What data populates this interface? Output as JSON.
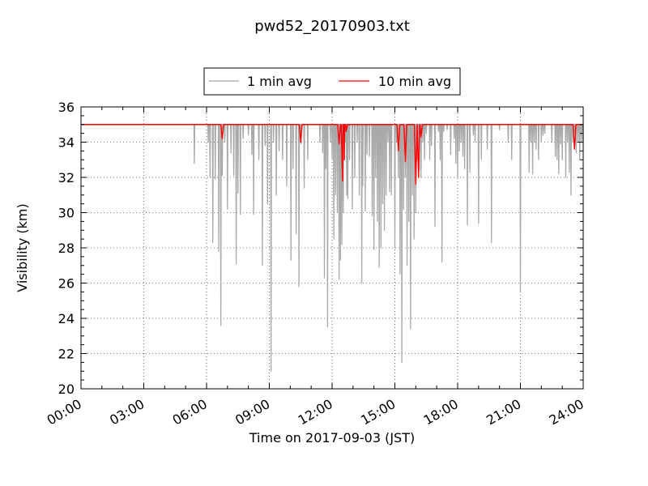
{
  "chart_data": {
    "type": "line",
    "title": "pwd52_20170903.txt",
    "xlabel": "Time on 2017-09-03 (JST)",
    "ylabel": "Visibility (km)",
    "xlim": [
      "00:00",
      "24:00"
    ],
    "ylim": [
      20,
      36
    ],
    "x_tick_labels": [
      "00:00",
      "03:00",
      "06:00",
      "09:00",
      "12:00",
      "15:00",
      "18:00",
      "21:00",
      "24:00"
    ],
    "y_ticks": [
      20,
      22,
      24,
      26,
      28,
      30,
      32,
      34,
      36
    ],
    "grid": true,
    "legend_position": "above plot, centered",
    "series": [
      {
        "name": "1 min avg",
        "color": "#a9a9a9",
        "baseline": 35.0,
        "dips": [
          [
            "05:25",
            32.8
          ],
          [
            "06:05",
            34.0
          ],
          [
            "06:10",
            32.0
          ],
          [
            "06:18",
            28.3
          ],
          [
            "06:25",
            31.9
          ],
          [
            "06:35",
            27.8
          ],
          [
            "06:41",
            23.6
          ],
          [
            "06:45",
            32.1
          ],
          [
            "06:52",
            34.0
          ],
          [
            "07:00",
            30.2
          ],
          [
            "07:10",
            33.4
          ],
          [
            "07:18",
            32.1
          ],
          [
            "07:25",
            27.1
          ],
          [
            "07:30",
            31.1
          ],
          [
            "07:37",
            29.9
          ],
          [
            "07:45",
            34.2
          ],
          [
            "08:00",
            34.4
          ],
          [
            "08:10",
            33.3
          ],
          [
            "08:15",
            29.9
          ],
          [
            "08:30",
            33.0
          ],
          [
            "08:40",
            27.0
          ],
          [
            "08:48",
            33.8
          ],
          [
            "08:55",
            30.5
          ],
          [
            "09:05",
            21.0
          ],
          [
            "09:12",
            34.0
          ],
          [
            "09:20",
            31.0
          ],
          [
            "09:28",
            33.5
          ],
          [
            "09:38",
            33.0
          ],
          [
            "09:50",
            31.5
          ],
          [
            "10:02",
            27.3
          ],
          [
            "10:08",
            32.5
          ],
          [
            "10:17",
            28.8
          ],
          [
            "10:25",
            25.8
          ],
          [
            "10:31",
            33.9
          ],
          [
            "10:40",
            31.4
          ],
          [
            "10:50",
            33.0
          ],
          [
            "11:25",
            34.0
          ],
          [
            "11:33",
            33.4
          ],
          [
            "11:38",
            26.3
          ],
          [
            "11:42",
            32.5
          ],
          [
            "11:47",
            23.5
          ],
          [
            "11:55",
            34.0
          ],
          [
            "12:00",
            33.0
          ],
          [
            "12:05",
            28.5
          ],
          [
            "12:10",
            31.0
          ],
          [
            "12:15",
            30.0
          ],
          [
            "12:20",
            26.2
          ],
          [
            "12:24",
            27.3
          ],
          [
            "12:28",
            28.2
          ],
          [
            "12:32",
            30.0
          ],
          [
            "12:38",
            34.0
          ],
          [
            "12:42",
            31.0
          ],
          [
            "12:45",
            30.8
          ],
          [
            "12:50",
            33.0
          ],
          [
            "12:58",
            30.2
          ],
          [
            "13:05",
            32.0
          ],
          [
            "13:12",
            34.0
          ],
          [
            "13:18",
            31.0
          ],
          [
            "13:25",
            26.0
          ],
          [
            "13:28",
            31.5
          ],
          [
            "13:35",
            30.1
          ],
          [
            "13:40",
            33.3
          ],
          [
            "13:47",
            33.2
          ],
          [
            "13:55",
            29.8
          ],
          [
            "14:00",
            27.9
          ],
          [
            "14:05",
            32.0
          ],
          [
            "14:10",
            29.5
          ],
          [
            "14:15",
            26.9
          ],
          [
            "14:20",
            28.0
          ],
          [
            "14:25",
            30.5
          ],
          [
            "14:30",
            29.0
          ],
          [
            "14:35",
            31.0
          ],
          [
            "14:40",
            34.0
          ],
          [
            "14:45",
            31.2
          ],
          [
            "14:50",
            31.0
          ],
          [
            "15:00",
            28.0
          ],
          [
            "15:05",
            34.0
          ],
          [
            "15:10",
            32.0
          ],
          [
            "15:15",
            26.5
          ],
          [
            "15:20",
            21.5
          ],
          [
            "15:25",
            30.2
          ],
          [
            "15:30",
            32.0
          ],
          [
            "15:35",
            27.0
          ],
          [
            "15:40",
            29.5
          ],
          [
            "15:45",
            23.4
          ],
          [
            "15:50",
            31.0
          ],
          [
            "15:55",
            28.5
          ],
          [
            "16:00",
            30.0
          ],
          [
            "16:05",
            33.0
          ],
          [
            "16:10",
            32.4
          ],
          [
            "16:15",
            32.0
          ],
          [
            "16:20",
            34.0
          ],
          [
            "16:25",
            33.0
          ],
          [
            "16:30",
            34.5
          ],
          [
            "16:40",
            33.0
          ],
          [
            "16:45",
            33.8
          ],
          [
            "16:55",
            29.2
          ],
          [
            "17:05",
            34.6
          ],
          [
            "17:10",
            33.0
          ],
          [
            "17:15",
            27.2
          ],
          [
            "17:20",
            34.6
          ],
          [
            "17:30",
            34.7
          ],
          [
            "17:40",
            33.3
          ],
          [
            "17:50",
            34.2
          ],
          [
            "17:55",
            32.8
          ],
          [
            "18:00",
            32.0
          ],
          [
            "18:05",
            33.5
          ],
          [
            "18:10",
            34.0
          ],
          [
            "18:15",
            33.2
          ],
          [
            "18:20",
            32.5
          ],
          [
            "18:28",
            29.3
          ],
          [
            "18:35",
            32.3
          ],
          [
            "18:45",
            34.4
          ],
          [
            "18:50",
            34.0
          ],
          [
            "19:00",
            29.4
          ],
          [
            "19:08",
            33.0
          ],
          [
            "19:25",
            33.6
          ],
          [
            "19:37",
            28.3
          ],
          [
            "20:00",
            34.7
          ],
          [
            "20:25",
            34.0
          ],
          [
            "20:35",
            33.0
          ],
          [
            "21:00",
            25.5
          ],
          [
            "21:25",
            32.3
          ],
          [
            "21:30",
            34.0
          ],
          [
            "21:35",
            32.2
          ],
          [
            "21:40",
            34.0
          ],
          [
            "21:45",
            33.6
          ],
          [
            "21:52",
            33.0
          ],
          [
            "22:00",
            34.0
          ],
          [
            "22:05",
            34.4
          ],
          [
            "22:10",
            34.5
          ],
          [
            "22:30",
            34.0
          ],
          [
            "22:40",
            33.2
          ],
          [
            "22:45",
            33.0
          ],
          [
            "22:50",
            32.2
          ],
          [
            "22:55",
            33.9
          ],
          [
            "23:00",
            33.0
          ],
          [
            "23:10",
            32.0
          ],
          [
            "23:15",
            34.0
          ],
          [
            "23:20",
            32.3
          ],
          [
            "23:25",
            31.0
          ],
          [
            "23:30",
            34.0
          ],
          [
            "23:35",
            34.5
          ],
          [
            "23:40",
            33.4
          ],
          [
            "23:45",
            34.0
          ],
          [
            "23:50",
            33.0
          ],
          [
            "23:55",
            34.0
          ],
          [
            "24:00",
            34.0
          ]
        ]
      },
      {
        "name": "10 min avg",
        "color": "#ff0000",
        "baseline": 35.0,
        "dips": [
          [
            "06:45",
            34.2
          ],
          [
            "10:30",
            34.0
          ],
          [
            "12:20",
            33.9
          ],
          [
            "12:30",
            31.8
          ],
          [
            "12:35",
            33.0
          ],
          [
            "12:40",
            34.6
          ],
          [
            "15:10",
            33.5
          ],
          [
            "15:30",
            32.9
          ],
          [
            "16:00",
            31.6
          ],
          [
            "16:08",
            32.0
          ],
          [
            "16:15",
            34.3
          ],
          [
            "23:35",
            33.6
          ]
        ]
      }
    ]
  }
}
